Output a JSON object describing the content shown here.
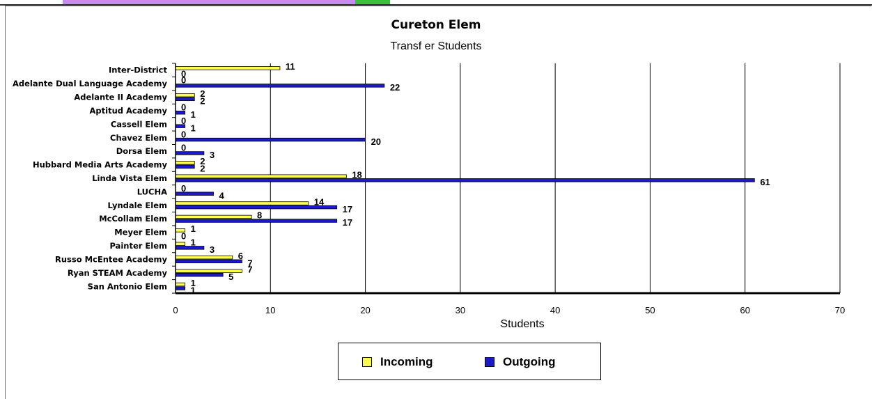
{
  "colors": {
    "incoming": "#ffff4d",
    "outgoing": "#1a1acc",
    "grid": "#000000",
    "axis": "#000000"
  },
  "chart_data": {
    "type": "bar",
    "orientation": "horizontal",
    "title": "Cureton Elem",
    "subtitle": "Transf er Students",
    "xlabel": "Students",
    "ylabel": "",
    "xlim": [
      0,
      70
    ],
    "ticks": [
      0,
      10,
      20,
      30,
      40,
      50,
      60,
      70
    ],
    "grid": true,
    "legend_position": "bottom-center",
    "categories": [
      "Inter-District",
      "Adelante Dual Language Academy",
      "Adelante II Academy",
      "Aptitud Academy",
      "Cassell Elem",
      "Chavez Elem",
      "Dorsa Elem",
      "Hubbard Media Arts Academy",
      "Linda Vista Elem",
      "LUCHA",
      "Lyndale Elem",
      "McCollam Elem",
      "Meyer Elem",
      "Painter Elem",
      "Russo McEntee Academy",
      "Ryan STEAM Academy",
      "San Antonio Elem"
    ],
    "series": [
      {
        "name": "Incoming",
        "values": [
          11,
          0,
          2,
          0,
          0,
          0,
          0,
          2,
          18,
          0,
          14,
          8,
          1,
          1,
          6,
          7,
          1
        ]
      },
      {
        "name": "Outgoing",
        "values": [
          0,
          22,
          2,
          1,
          1,
          20,
          3,
          2,
          61,
          4,
          17,
          17,
          0,
          3,
          7,
          5,
          1
        ]
      }
    ]
  }
}
